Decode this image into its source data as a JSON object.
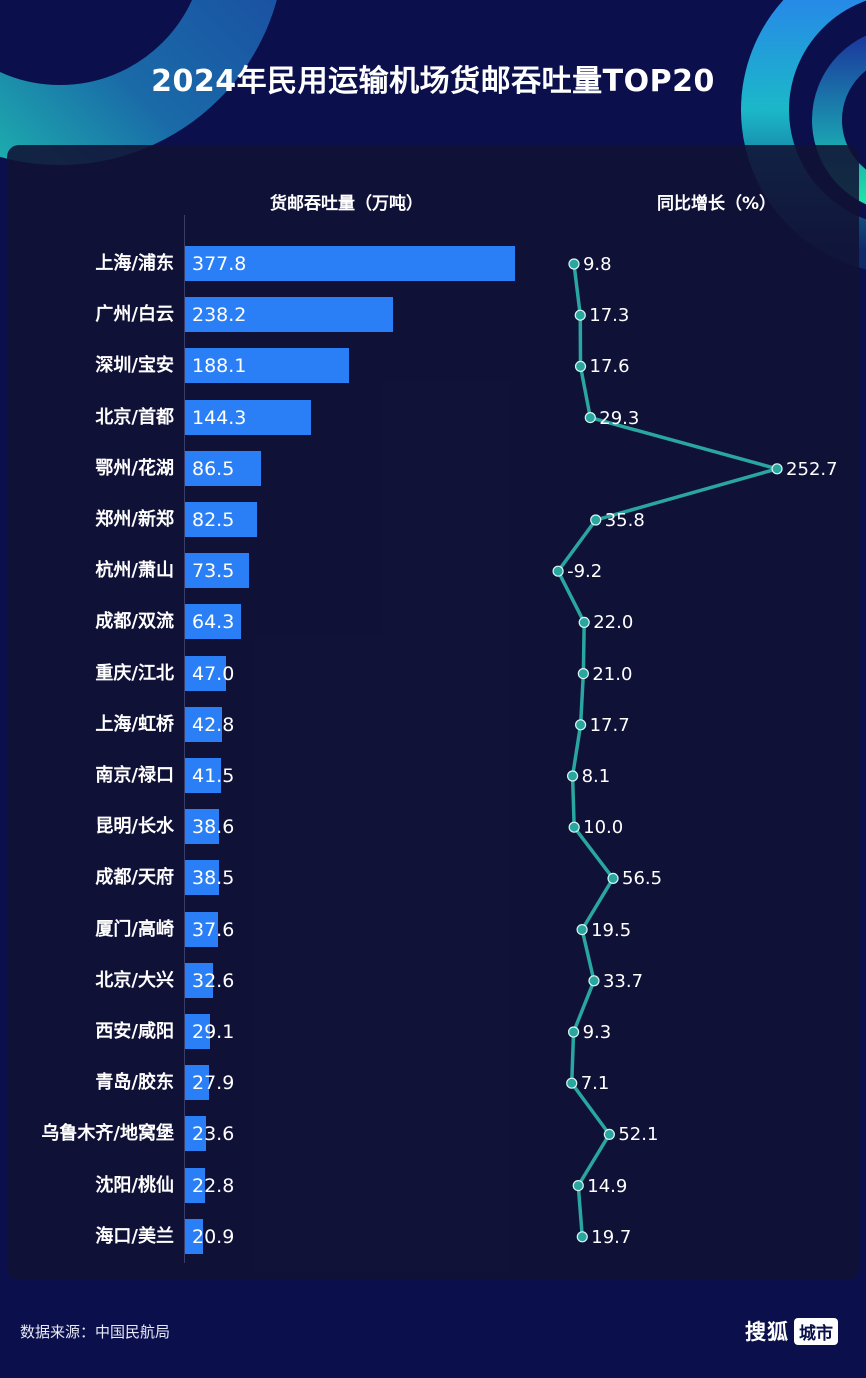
{
  "title": "2024年民用运输机场货邮吞吐量TOP20",
  "headers": {
    "volume": "货邮吞吐量（万吨）",
    "growth": "同比增长（%）"
  },
  "footer": {
    "source": "数据来源：中国民航局",
    "brand_main": "搜狐",
    "brand_tag": "城市"
  },
  "colors": {
    "background": "#0b0f4c",
    "panel": "#111234",
    "bar": "#2b7ff6",
    "line": "#2aa6a0",
    "text": "#ffffff"
  },
  "chart_data": [
    {
      "type": "bar",
      "orientation": "horizontal",
      "title": "货邮吞吐量（万吨）",
      "xlabel": "货邮吞吐量（万吨）",
      "ylabel": "",
      "categories": [
        "上海/浦东",
        "广州/白云",
        "深圳/宝安",
        "北京/首都",
        "鄂州/花湖",
        "郑州/新郑",
        "杭州/萧山",
        "成都/双流",
        "重庆/江北",
        "上海/虹桥",
        "南京/禄口",
        "昆明/长水",
        "成都/天府",
        "厦门/高崎",
        "北京/大兴",
        "西安/咸阳",
        "青岛/胶东",
        "乌鲁木齐/地窝堡",
        "沈阳/桃仙",
        "海口/美兰"
      ],
      "values": [
        377.8,
        238.2,
        188.1,
        144.3,
        86.5,
        82.5,
        73.5,
        64.3,
        47.0,
        42.8,
        41.5,
        38.6,
        38.5,
        37.6,
        32.6,
        29.1,
        27.9,
        23.6,
        22.8,
        20.9
      ],
      "labels": [
        "377.8",
        "238.2",
        "188.1",
        "144.3",
        "86.5",
        "82.5",
        "73.5",
        "64.3",
        "47.0",
        "42.8",
        "41.5",
        "38.6",
        "38.5",
        "37.6",
        "32.6",
        "29.1",
        "27.9",
        "23.6",
        "22.8",
        "20.9"
      ],
      "grid": false,
      "xlim": [
        0,
        380
      ]
    },
    {
      "type": "line",
      "orientation": "vertical",
      "title": "同比增长（%）",
      "xlabel": "同比增长（%）",
      "categories": [
        "上海/浦东",
        "广州/白云",
        "深圳/宝安",
        "北京/首都",
        "鄂州/花湖",
        "郑州/新郑",
        "杭州/萧山",
        "成都/双流",
        "重庆/江北",
        "上海/虹桥",
        "南京/禄口",
        "昆明/长水",
        "成都/天府",
        "厦门/高崎",
        "北京/大兴",
        "西安/咸阳",
        "青岛/胶东",
        "乌鲁木齐/地窝堡",
        "沈阳/桃仙",
        "海口/美兰"
      ],
      "values": [
        9.8,
        17.3,
        17.6,
        29.3,
        252.7,
        35.8,
        -9.2,
        22.0,
        21.0,
        17.7,
        8.1,
        10.0,
        56.5,
        19.5,
        33.7,
        9.3,
        7.1,
        52.1,
        14.9,
        19.7
      ],
      "labels": [
        "9.8",
        "17.3",
        "17.6",
        "29.3",
        "252.7",
        "35.8",
        "-9.2",
        "22.0",
        "21.0",
        "17.7",
        "8.1",
        "10.0",
        "56.5",
        "19.5",
        "33.7",
        "9.3",
        "7.1",
        "52.1",
        "14.9",
        "19.7"
      ],
      "grid": false
    }
  ]
}
